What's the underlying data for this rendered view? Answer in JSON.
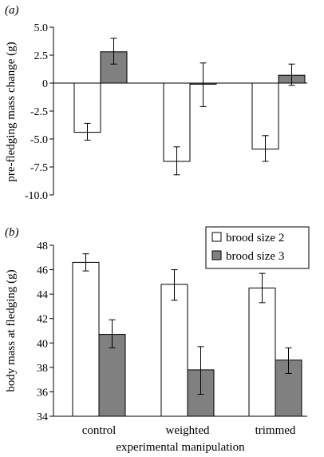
{
  "chart_data": [
    {
      "type": "bar",
      "panel_label": "(a)",
      "title": "",
      "xlabel": "",
      "ylabel": "pre-fledging mass change (g)",
      "ylim": [
        -10.0,
        5.0
      ],
      "yticks": [
        "5.0",
        "2.5",
        "0",
        "-2.5",
        "-5.0",
        "-7.5",
        "-10.0"
      ],
      "ytick_values": [
        5.0,
        2.5,
        0,
        -2.5,
        -5.0,
        -7.5,
        -10.0
      ],
      "categories": [
        "control",
        "weighted",
        "trimmed"
      ],
      "show_category_labels": false,
      "series": [
        {
          "name": "brood size 2",
          "color": "#ffffff",
          "values": [
            -4.4,
            -7.0,
            -5.9
          ],
          "err_low": [
            -5.1,
            -8.2,
            -7.0
          ],
          "err_high": [
            -3.6,
            -5.7,
            -4.7
          ]
        },
        {
          "name": "brood size 3",
          "color": "#808080",
          "values": [
            2.8,
            -0.1,
            0.7
          ],
          "err_low": [
            1.7,
            -2.1,
            -0.2
          ],
          "err_high": [
            4.0,
            1.8,
            1.7
          ]
        }
      ],
      "grid": false,
      "legend": "none"
    },
    {
      "type": "bar",
      "panel_label": "(b)",
      "title": "",
      "xlabel": "experimental manipulation",
      "ylabel": "body mass at fledging (g)",
      "ylim": [
        34,
        48
      ],
      "yticks": [
        "48",
        "46",
        "44",
        "42",
        "40",
        "38",
        "36",
        "34"
      ],
      "ytick_values": [
        48,
        46,
        44,
        42,
        40,
        38,
        36,
        34
      ],
      "categories": [
        "control",
        "weighted",
        "trimmed"
      ],
      "show_category_labels": true,
      "series": [
        {
          "name": "brood size 2",
          "color": "#ffffff",
          "values": [
            46.6,
            44.8,
            44.5
          ],
          "err_low": [
            45.9,
            43.5,
            43.3
          ],
          "err_high": [
            47.3,
            46.0,
            45.7
          ]
        },
        {
          "name": "brood size 3",
          "color": "#808080",
          "values": [
            40.7,
            37.8,
            38.6
          ],
          "err_low": [
            39.6,
            35.8,
            37.5
          ],
          "err_high": [
            41.9,
            39.7,
            39.6
          ]
        }
      ],
      "grid": false,
      "legend": "top-right"
    }
  ]
}
